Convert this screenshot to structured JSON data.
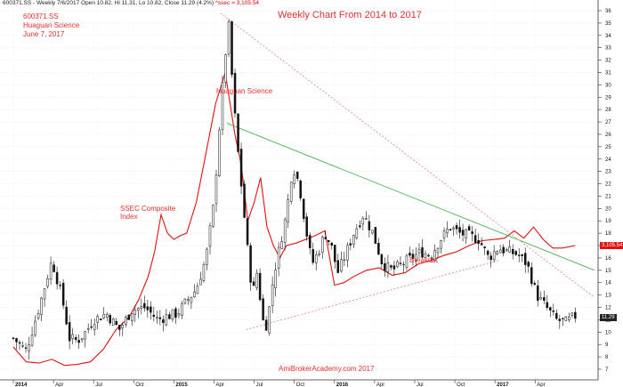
{
  "header": {
    "symbol": "600371.SS",
    "info": " - Weekly 7/6/2017 Open 10.82, Hi 11.31, Lo 10.82, Close 11.29 (4.2%)",
    "ssec": " ^ssec = 3,105.54"
  },
  "annotations": {
    "stock_line1": "600371.SS",
    "stock_line2": "Huaguan Science",
    "stock_line3": "June 7, 2017",
    "title": "Weekly Chart From 2014 to 2017",
    "huaguan_label": "Huaguan Science",
    "ssec_line1": "SSEC Composite",
    "ssec_line2": "Index",
    "breakout": "Breakout",
    "watermark": "AmiBrokerAcademy.com  2017"
  },
  "price_tags": {
    "ssec_value": "3,105.54",
    "close_value": "11.29"
  },
  "colors": {
    "ssec_line": "#e01010",
    "price_tag_red": "#e01010",
    "price_tag_dark": "#222222",
    "downtrend": "#4caf50",
    "uptrend": "#e08080",
    "resistance": "#e08080",
    "text_red": "#e03030"
  },
  "chart_data": {
    "type": "candlestick",
    "title": "Weekly Chart From 2014 to 2017",
    "y_axis": {
      "min": 7,
      "max": 36,
      "ticks": [
        7,
        8,
        9,
        10,
        11,
        12,
        13,
        14,
        15,
        16,
        17,
        18,
        19,
        20,
        21,
        22,
        23,
        24,
        25,
        26,
        27,
        28,
        29,
        30,
        31,
        32,
        33,
        34,
        35,
        36
      ],
      "side": "right"
    },
    "x_axis": {
      "min": 2014.0,
      "max": 2017.62,
      "ticks": [
        {
          "x": 2014.0,
          "label": "2014",
          "bold": true
        },
        {
          "x": 2014.25,
          "label": "Apr",
          "bold": false
        },
        {
          "x": 2014.5,
          "label": "Jul",
          "bold": false
        },
        {
          "x": 2014.75,
          "label": "Oct",
          "bold": false
        },
        {
          "x": 2015.0,
          "label": "2015",
          "bold": true
        },
        {
          "x": 2015.25,
          "label": "Apr",
          "bold": false
        },
        {
          "x": 2015.5,
          "label": "Jul",
          "bold": false
        },
        {
          "x": 2015.75,
          "label": "Oct",
          "bold": false
        },
        {
          "x": 2016.0,
          "label": "2016",
          "bold": true
        },
        {
          "x": 2016.25,
          "label": "Apr",
          "bold": false
        },
        {
          "x": 2016.5,
          "label": "Jul",
          "bold": false
        },
        {
          "x": 2016.75,
          "label": "Oct",
          "bold": false
        },
        {
          "x": 2017.0,
          "label": "2017",
          "bold": true
        },
        {
          "x": 2017.25,
          "label": "Apr",
          "bold": false
        }
      ]
    },
    "price_series": {
      "name": "600371.SS",
      "x": [
        2014.0,
        2014.08,
        2014.16,
        2014.24,
        2014.3,
        2014.35,
        2014.4,
        2014.45,
        2014.5,
        2014.58,
        2014.66,
        2014.74,
        2014.82,
        2014.9,
        2014.96,
        2015.02,
        2015.08,
        2015.14,
        2015.2,
        2015.25,
        2015.28,
        2015.31,
        2015.34,
        2015.37,
        2015.4,
        2015.43,
        2015.46,
        2015.49,
        2015.52,
        2015.55,
        2015.58,
        2015.62,
        2015.66,
        2015.7,
        2015.74,
        2015.78,
        2015.82,
        2015.86,
        2015.9,
        2015.94,
        2015.98,
        2016.02,
        2016.06,
        2016.12,
        2016.18,
        2016.24,
        2016.3,
        2016.36,
        2016.42,
        2016.48,
        2016.54,
        2016.6,
        2016.66,
        2016.72,
        2016.78,
        2016.84,
        2016.9,
        2016.96,
        2017.02,
        2017.08,
        2017.14,
        2017.2,
        2017.26,
        2017.32,
        2017.38,
        2017.44,
        2017.5
      ],
      "close": [
        9.5,
        8.5,
        12.0,
        15.8,
        13.0,
        9.5,
        9.3,
        10.0,
        11.0,
        11.5,
        10.2,
        11.8,
        12.0,
        11.0,
        11.3,
        11.5,
        12.5,
        13.5,
        16.0,
        20.5,
        26.0,
        31.0,
        35.0,
        29.0,
        24.5,
        20.5,
        16.5,
        13.0,
        15.0,
        11.0,
        10.5,
        14.5,
        17.0,
        19.5,
        23.5,
        22.0,
        18.5,
        15.5,
        16.5,
        18.0,
        17.0,
        14.8,
        16.0,
        18.0,
        19.5,
        18.0,
        15.5,
        15.0,
        15.5,
        16.0,
        16.5,
        16.2,
        17.5,
        18.5,
        18.0,
        17.8,
        17.5,
        16.0,
        16.8,
        16.5,
        16.3,
        15.5,
        13.0,
        12.0,
        11.0,
        10.8,
        11.3
      ]
    },
    "ssec_series": {
      "name": "SSEC Composite Index",
      "x": [
        2014.0,
        2014.08,
        2014.16,
        2014.24,
        2014.32,
        2014.4,
        2014.48,
        2014.56,
        2014.64,
        2014.72,
        2014.78,
        2014.84,
        2014.88,
        2014.92,
        2014.96,
        2015.0,
        2015.04,
        2015.08,
        2015.14,
        2015.2,
        2015.26,
        2015.32,
        2015.38,
        2015.42,
        2015.46,
        2015.5,
        2015.54,
        2015.58,
        2015.62,
        2015.66,
        2015.7,
        2015.76,
        2015.82,
        2015.88,
        2015.94,
        2016.0,
        2016.06,
        2016.12,
        2016.2,
        2016.28,
        2016.36,
        2016.44,
        2016.52,
        2016.6,
        2016.68,
        2016.76,
        2016.84,
        2016.92,
        2017.0,
        2017.06,
        2017.12,
        2017.18,
        2017.24,
        2017.3,
        2017.36,
        2017.42,
        2017.5
      ],
      "y": [
        8.8,
        7.6,
        7.5,
        7.8,
        7.3,
        7.4,
        7.6,
        8.6,
        10.2,
        11.2,
        12.6,
        14.5,
        16.5,
        19.5,
        18.0,
        17.5,
        17.8,
        18.0,
        20.5,
        24.5,
        28.5,
        31.0,
        26.0,
        23.5,
        19.0,
        20.5,
        22.5,
        18.5,
        17.0,
        16.0,
        17.0,
        17.2,
        17.5,
        17.8,
        18.2,
        13.8,
        14.0,
        14.5,
        15.0,
        15.2,
        14.6,
        14.8,
        15.5,
        15.8,
        16.2,
        16.5,
        17.0,
        17.4,
        17.5,
        17.6,
        18.2,
        17.6,
        18.5,
        17.5,
        16.8,
        16.8,
        17.0
      ]
    },
    "trendlines": [
      {
        "name": "downtrend",
        "from": [
          2015.33,
          26.9
        ],
        "to": [
          2017.62,
          15.0
        ]
      },
      {
        "name": "uptrend",
        "from": [
          2015.45,
          10.2
        ],
        "to": [
          2017.02,
          15.8
        ]
      },
      {
        "name": "resistance",
        "from": [
          2015.29,
          35.8
        ],
        "to": [
          2017.62,
          12.8
        ]
      }
    ]
  }
}
